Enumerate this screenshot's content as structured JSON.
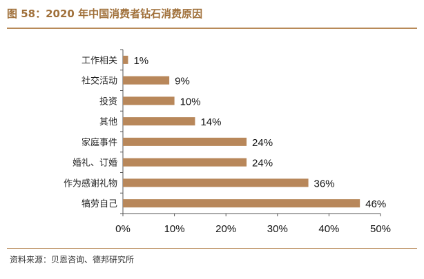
{
  "title": "图 58：2020 年中国消费者钻石消费原因",
  "source": "资料来源：贝恩咨询、德邦研究所",
  "colors": {
    "bar": "#b8875a",
    "accent": "#a0703a",
    "axis": "#555555"
  },
  "chart_data": {
    "type": "bar",
    "orientation": "horizontal",
    "categories": [
      "工作相关",
      "社交活动",
      "投资",
      "其他",
      "家庭事件",
      "婚礼、订婚",
      "作为感谢礼物",
      "犒劳自己"
    ],
    "values": [
      1,
      9,
      10,
      14,
      24,
      24,
      36,
      46
    ],
    "value_labels": [
      "1%",
      "9%",
      "10%",
      "14%",
      "24%",
      "24%",
      "36%",
      "46%"
    ],
    "xlim": [
      0,
      50
    ],
    "x_ticks": [
      "0%",
      "10%",
      "20%",
      "30%",
      "40%",
      "50%"
    ],
    "xlabel": "",
    "ylabel": "",
    "grid": false,
    "legend": "none"
  }
}
